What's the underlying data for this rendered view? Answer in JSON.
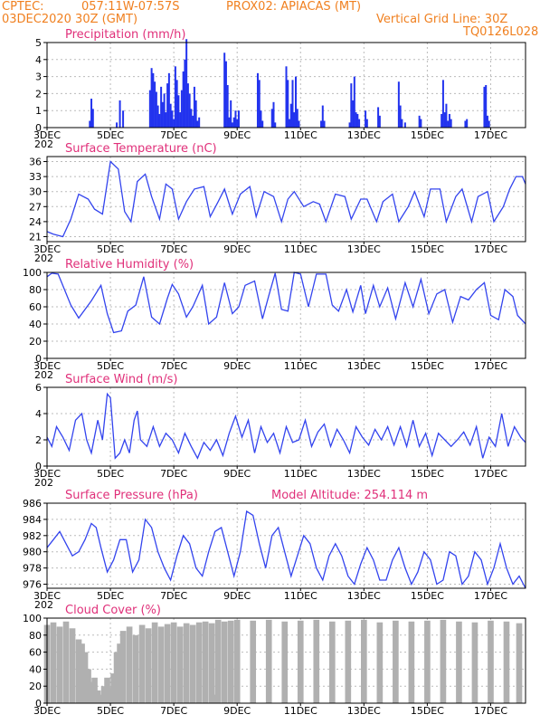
{
  "header": {
    "source": "CPTEC:",
    "coords": "057:11W-07:57S",
    "station": "PROX02: APIACAS (MT)",
    "date": "03DEC2020 30Z (GMT)",
    "grid_note": "Vertical Grid Line: 30Z",
    "model_code": "TQ0126L028"
  },
  "model_altitude": "Model Altitude: 254.114 m",
  "x_axis": {
    "labels": [
      "3DEC",
      "5DEC",
      "7DEC",
      "9DEC",
      "11DEC",
      "13DEC",
      "15DEC",
      "17DEC"
    ],
    "days": [
      3,
      5,
      7,
      9,
      11,
      13,
      15,
      17
    ],
    "range": [
      3,
      18.1
    ],
    "year_stub": "202"
  },
  "colors": {
    "line": "#3344ee",
    "bar": "#2233ee",
    "cloud": "#b0b0b0",
    "title": "#e0307a",
    "header": "#f08020"
  },
  "chart_data": [
    {
      "type": "bar",
      "title": "Precipitation (mm/h)",
      "ylim": [
        0,
        5
      ],
      "yticks": [
        0,
        1,
        2,
        3,
        4,
        5
      ],
      "x": [
        4.35,
        4.4,
        4.45,
        5.2,
        5.3,
        5.4,
        6.25,
        6.3,
        6.35,
        6.4,
        6.45,
        6.5,
        6.55,
        6.6,
        6.65,
        6.7,
        6.75,
        6.8,
        6.85,
        6.9,
        6.95,
        7.0,
        7.05,
        7.1,
        7.15,
        7.2,
        7.25,
        7.3,
        7.35,
        7.4,
        7.45,
        7.5,
        7.55,
        7.6,
        7.65,
        7.7,
        7.75,
        7.8,
        8.6,
        8.65,
        8.7,
        8.75,
        8.8,
        8.85,
        8.9,
        8.95,
        9.0,
        9.05,
        9.65,
        9.7,
        9.75,
        9.8,
        10.1,
        10.15,
        10.2,
        10.55,
        10.6,
        10.65,
        10.7,
        10.75,
        10.8,
        10.85,
        10.9,
        10.95,
        11.65,
        11.7,
        11.75,
        12.55,
        12.6,
        12.65,
        12.7,
        12.75,
        12.8,
        12.85,
        13.05,
        13.1,
        13.45,
        13.5,
        14.1,
        14.15,
        14.2,
        14.3,
        14.75,
        14.8,
        15.45,
        15.5,
        15.55,
        15.6,
        15.65,
        15.7,
        15.75,
        16.2,
        16.25,
        16.8,
        16.85,
        16.9,
        16.95
      ],
      "values": [
        0.4,
        1.7,
        1.1,
        0.3,
        1.6,
        1.0,
        2.2,
        3.5,
        3.2,
        2.7,
        2.1,
        1.3,
        0.8,
        2.4,
        1.5,
        2.0,
        0.9,
        2.6,
        3.2,
        1.4,
        1.0,
        0.5,
        3.6,
        2.8,
        1.9,
        0.9,
        2.2,
        3.3,
        4.0,
        5.2,
        2.6,
        2.0,
        1.1,
        0.7,
        2.4,
        1.6,
        0.4,
        0.6,
        4.4,
        3.9,
        2.5,
        0.6,
        1.6,
        0.3,
        0.6,
        1.0,
        0.5,
        1.0,
        3.2,
        2.8,
        1.0,
        0.4,
        1.1,
        1.5,
        0.3,
        3.6,
        2.8,
        0.5,
        1.4,
        2.8,
        0.9,
        3.0,
        1.1,
        0.4,
        0.4,
        1.3,
        0.4,
        0.3,
        2.6,
        1.6,
        3.0,
        0.9,
        0.8,
        0.5,
        1.0,
        0.5,
        1.2,
        0.7,
        2.7,
        1.3,
        0.5,
        0.3,
        0.7,
        0.5,
        0.8,
        2.8,
        0.9,
        1.4,
        0.4,
        0.8,
        0.5,
        0.4,
        0.5,
        2.4,
        2.5,
        0.7,
        0.4
      ]
    },
    {
      "type": "line",
      "title": "Surface Temperature (nC)",
      "ylim": [
        20,
        37
      ],
      "yticks": [
        21,
        24,
        27,
        30,
        33,
        36
      ],
      "x": [
        3.0,
        3.2,
        3.5,
        3.75,
        4.0,
        4.3,
        4.5,
        4.75,
        5.0,
        5.25,
        5.45,
        5.65,
        5.85,
        6.1,
        6.3,
        6.55,
        6.75,
        6.95,
        7.15,
        7.4,
        7.65,
        7.95,
        8.15,
        8.4,
        8.6,
        8.85,
        9.1,
        9.4,
        9.6,
        9.85,
        10.15,
        10.4,
        10.6,
        10.8,
        11.1,
        11.4,
        11.6,
        11.8,
        12.1,
        12.4,
        12.6,
        12.9,
        13.1,
        13.4,
        13.6,
        13.9,
        14.1,
        14.4,
        14.6,
        14.9,
        15.1,
        15.4,
        15.6,
        15.9,
        16.1,
        16.4,
        16.6,
        16.9,
        17.1,
        17.4,
        17.6,
        17.8,
        18.0,
        18.1
      ],
      "values": [
        22,
        21.5,
        21,
        24.5,
        29.5,
        28.5,
        26.5,
        25.5,
        36,
        34.5,
        26,
        24,
        32,
        33.5,
        29,
        24.5,
        31.5,
        30.5,
        24.5,
        28,
        30.5,
        31,
        25,
        28,
        30.5,
        25.5,
        29.5,
        31,
        25,
        30,
        29,
        24,
        28.5,
        30,
        27,
        28,
        27.5,
        24,
        29.5,
        29,
        24.5,
        28.5,
        28.5,
        24,
        28,
        29.5,
        24,
        27,
        30,
        25,
        30.5,
        30.5,
        24,
        29,
        30.5,
        24,
        29,
        30,
        24,
        27,
        30.5,
        33,
        33,
        31.5
      ]
    },
    {
      "type": "line",
      "title": "Relative Humidity (%)",
      "ylim": [
        0,
        100
      ],
      "yticks": [
        0,
        20,
        40,
        60,
        80,
        100
      ],
      "x": [
        3.0,
        3.15,
        3.35,
        3.75,
        4.0,
        4.4,
        4.7,
        4.9,
        5.1,
        5.35,
        5.55,
        5.8,
        6.05,
        6.3,
        6.55,
        6.8,
        6.95,
        7.15,
        7.4,
        7.6,
        7.9,
        8.1,
        8.35,
        8.6,
        8.85,
        9.05,
        9.25,
        9.55,
        9.8,
        10.0,
        10.2,
        10.4,
        10.6,
        10.8,
        11.0,
        11.25,
        11.5,
        11.8,
        12.0,
        12.2,
        12.45,
        12.65,
        12.9,
        13.05,
        13.3,
        13.5,
        13.75,
        14.0,
        14.3,
        14.55,
        14.8,
        15.05,
        15.3,
        15.55,
        15.8,
        16.05,
        16.3,
        16.55,
        16.8,
        17.0,
        17.25,
        17.45,
        17.7,
        17.85,
        18.1
      ],
      "values": [
        95,
        99,
        98,
        62,
        47,
        67,
        85,
        52,
        30,
        32,
        55,
        62,
        95,
        48,
        40,
        70,
        86,
        75,
        48,
        60,
        85,
        40,
        48,
        88,
        52,
        60,
        85,
        90,
        46,
        73,
        99,
        57,
        55,
        100,
        98,
        60,
        98,
        98,
        62,
        55,
        80,
        54,
        85,
        52,
        85,
        60,
        82,
        46,
        88,
        60,
        92,
        52,
        75,
        80,
        42,
        72,
        68,
        80,
        88,
        50,
        45,
        80,
        72,
        50,
        40
      ]
    },
    {
      "type": "line",
      "title": "Surface Wind (m/s)",
      "ylim": [
        0,
        6
      ],
      "yticks": [
        0,
        2,
        4,
        6
      ],
      "x": [
        3.0,
        3.15,
        3.3,
        3.5,
        3.7,
        3.9,
        4.1,
        4.25,
        4.4,
        4.6,
        4.75,
        4.9,
        5.0,
        5.15,
        5.3,
        5.45,
        5.6,
        5.75,
        5.85,
        5.95,
        6.15,
        6.35,
        6.55,
        6.75,
        6.95,
        7.15,
        7.35,
        7.55,
        7.75,
        7.95,
        8.15,
        8.35,
        8.55,
        8.75,
        8.95,
        9.15,
        9.35,
        9.55,
        9.75,
        9.95,
        10.15,
        10.35,
        10.55,
        10.75,
        10.95,
        11.15,
        11.35,
        11.55,
        11.75,
        11.95,
        12.15,
        12.35,
        12.55,
        12.75,
        12.95,
        13.15,
        13.35,
        13.55,
        13.75,
        13.95,
        14.15,
        14.35,
        14.55,
        14.75,
        14.95,
        15.15,
        15.35,
        15.55,
        15.75,
        15.95,
        16.15,
        16.35,
        16.55,
        16.75,
        16.95,
        17.15,
        17.35,
        17.55,
        17.75,
        17.95,
        18.1
      ],
      "values": [
        2.2,
        1.5,
        3.0,
        2.2,
        1.2,
        3.5,
        4.0,
        2.0,
        1.0,
        3.5,
        2.0,
        5.5,
        5.2,
        0.6,
        1.0,
        2.0,
        1.0,
        3.5,
        4.2,
        2.0,
        1.5,
        3.0,
        1.5,
        2.5,
        2.0,
        1.0,
        2.5,
        1.5,
        0.6,
        1.8,
        1.2,
        2.0,
        0.8,
        2.5,
        3.8,
        2.2,
        3.5,
        1.0,
        3.0,
        1.8,
        2.5,
        1.0,
        3.0,
        1.8,
        2.0,
        3.5,
        1.5,
        2.6,
        3.2,
        1.5,
        2.8,
        2.0,
        1.0,
        3.0,
        2.2,
        1.6,
        2.8,
        2.0,
        3.0,
        1.6,
        3.0,
        1.5,
        3.5,
        1.5,
        2.5,
        0.8,
        2.5,
        2.0,
        1.5,
        2.0,
        2.6,
        1.6,
        3.0,
        0.6,
        2.2,
        1.5,
        4.0,
        1.5,
        3.0,
        2.2,
        1.8
      ]
    },
    {
      "type": "line",
      "title": "Surface Pressure (hPa)",
      "ylim": [
        975.5,
        986
      ],
      "yticks": [
        976,
        978,
        980,
        982,
        984,
        986
      ],
      "x": [
        3.0,
        3.2,
        3.4,
        3.6,
        3.8,
        4.0,
        4.2,
        4.4,
        4.55,
        4.7,
        4.9,
        5.1,
        5.3,
        5.5,
        5.7,
        5.9,
        6.1,
        6.3,
        6.5,
        6.7,
        6.9,
        7.1,
        7.3,
        7.5,
        7.7,
        7.9,
        8.1,
        8.3,
        8.5,
        8.7,
        8.9,
        9.1,
        9.3,
        9.5,
        9.7,
        9.9,
        10.1,
        10.3,
        10.5,
        10.7,
        10.9,
        11.1,
        11.3,
        11.5,
        11.7,
        11.9,
        12.1,
        12.3,
        12.5,
        12.7,
        12.9,
        13.1,
        13.3,
        13.5,
        13.7,
        13.9,
        14.1,
        14.3,
        14.5,
        14.7,
        14.9,
        15.1,
        15.3,
        15.5,
        15.7,
        15.9,
        16.1,
        16.3,
        16.5,
        16.7,
        16.9,
        17.1,
        17.3,
        17.5,
        17.7,
        17.9,
        18.1
      ],
      "values": [
        980.5,
        981.5,
        982.5,
        981,
        979.5,
        980,
        981.5,
        983.5,
        983,
        980.5,
        977.5,
        979,
        981.5,
        981.5,
        977.5,
        979,
        984,
        983,
        980,
        978,
        976.5,
        979.5,
        982,
        981,
        978,
        977,
        980,
        982.5,
        983,
        980,
        977,
        980,
        985,
        984.5,
        981,
        978,
        982,
        983,
        980,
        977,
        979.5,
        982,
        981,
        978,
        976.5,
        979.5,
        981,
        979.5,
        977,
        976,
        978.5,
        980.5,
        979,
        976.5,
        976.5,
        979,
        980.5,
        978,
        976,
        977.5,
        980,
        979,
        976,
        976.5,
        980,
        979.5,
        976,
        977,
        980,
        979,
        976,
        978,
        981,
        978,
        976,
        977,
        975.5
      ]
    },
    {
      "type": "bar",
      "title": "Cloud Cover (%)",
      "ylim": [
        0,
        100
      ],
      "yticks": [
        0,
        20,
        40,
        60,
        80,
        100
      ],
      "x": [
        3.0,
        3.2,
        3.4,
        3.6,
        3.8,
        4.0,
        4.1,
        4.2,
        4.3,
        4.4,
        4.5,
        4.6,
        4.7,
        4.8,
        4.9,
        5.0,
        5.1,
        5.2,
        5.3,
        5.4,
        5.6,
        5.8,
        6.0,
        6.2,
        6.4,
        6.6,
        6.8,
        7.0,
        7.2,
        7.4,
        7.6,
        7.8,
        8.0,
        8.2,
        8.35,
        8.4,
        8.6,
        8.8,
        9.0,
        9.5,
        10.0,
        10.5,
        11.0,
        11.5,
        12.0,
        12.5,
        13.0,
        13.5,
        14.0,
        14.5,
        15.0,
        15.5,
        16.0,
        16.5,
        17.0,
        17.5,
        17.9
      ],
      "values": [
        92,
        95,
        90,
        96,
        88,
        75,
        70,
        60,
        40,
        25,
        30,
        15,
        10,
        20,
        30,
        18,
        35,
        60,
        70,
        85,
        90,
        80,
        92,
        88,
        95,
        90,
        93,
        95,
        90,
        94,
        92,
        95,
        96,
        94,
        10,
        98,
        96,
        97,
        98,
        97,
        98,
        96,
        97,
        98,
        96,
        97,
        98,
        95,
        97,
        96,
        97,
        98,
        96,
        95,
        97,
        96,
        94
      ]
    }
  ]
}
